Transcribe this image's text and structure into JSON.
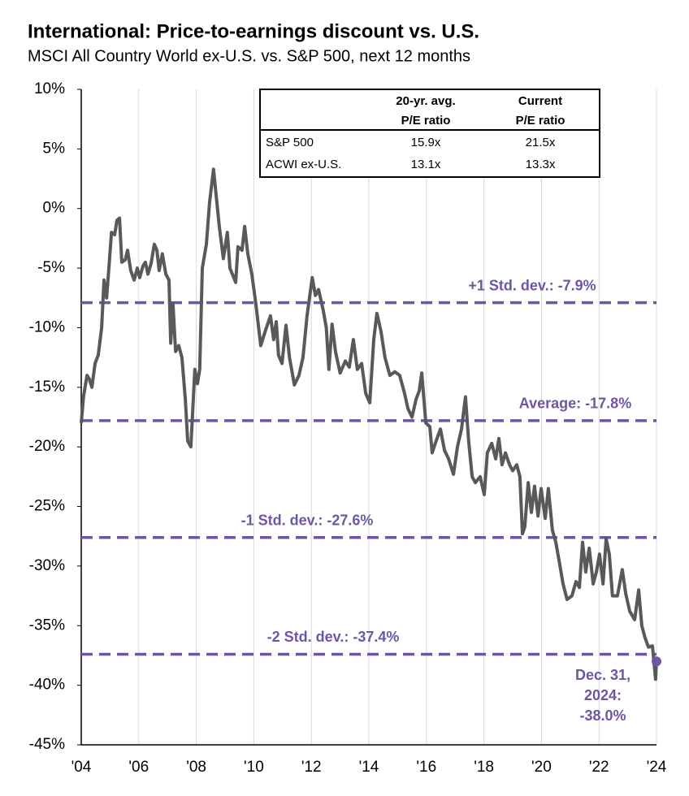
{
  "chart_data": {
    "type": "line",
    "title": "International: Price-to-earnings discount vs. U.S.",
    "subtitle": "MSCI All Country World ex-U.S. vs. S&P 500, next 12 months",
    "xlim": [
      2004,
      2024
    ],
    "xticks": [
      {
        "value": 2004,
        "label": "'04"
      },
      {
        "value": 2006,
        "label": "'06"
      },
      {
        "value": 2008,
        "label": "'08"
      },
      {
        "value": 2010,
        "label": "'10"
      },
      {
        "value": 2012,
        "label": "'12"
      },
      {
        "value": 2014,
        "label": "'14"
      },
      {
        "value": 2016,
        "label": "'16"
      },
      {
        "value": 2018,
        "label": "'18"
      },
      {
        "value": 2020,
        "label": "'20"
      },
      {
        "value": 2022,
        "label": "'22"
      },
      {
        "value": 2024,
        "label": "'24"
      }
    ],
    "ylim": [
      -45,
      10
    ],
    "yticks": [
      {
        "value": 10,
        "label": "10%"
      },
      {
        "value": 5,
        "label": "5%"
      },
      {
        "value": 0,
        "label": "0%"
      },
      {
        "value": -5,
        "label": "-5%"
      },
      {
        "value": -10,
        "label": "-10%"
      },
      {
        "value": -15,
        "label": "-15%"
      },
      {
        "value": -20,
        "label": "-20%"
      },
      {
        "value": -25,
        "label": "-25%"
      },
      {
        "value": -30,
        "label": "-30%"
      },
      {
        "value": -35,
        "label": "-35%"
      },
      {
        "value": -40,
        "label": "-40%"
      },
      {
        "value": -45,
        "label": "-45%"
      }
    ],
    "grid": "x",
    "x": [
      2004.0,
      2004.08,
      2004.2,
      2004.28,
      2004.37,
      2004.48,
      2004.59,
      2004.71,
      2004.79,
      2004.88,
      2004.96,
      2005.05,
      2005.16,
      2005.24,
      2005.33,
      2005.41,
      2005.53,
      2005.61,
      2005.72,
      2005.84,
      2005.95,
      2006.03,
      2006.15,
      2006.23,
      2006.32,
      2006.43,
      2006.54,
      2006.63,
      2006.71,
      2006.82,
      2006.94,
      2007.05,
      2007.11,
      2007.19,
      2007.28,
      2007.39,
      2007.5,
      2007.62,
      2007.7,
      2007.81,
      2007.95,
      2008.04,
      2008.12,
      2008.21,
      2008.35,
      2008.46,
      2008.6,
      2008.8,
      2008.94,
      2009.08,
      2009.17,
      2009.37,
      2009.45,
      2009.59,
      2009.68,
      2009.79,
      2009.93,
      2010.07,
      2010.24,
      2010.41,
      2010.58,
      2010.69,
      2010.78,
      2010.86,
      2010.98,
      2011.12,
      2011.24,
      2011.41,
      2011.57,
      2011.71,
      2011.85,
      2012.03,
      2012.14,
      2012.25,
      2012.41,
      2012.52,
      2012.61,
      2012.72,
      2012.84,
      2013.0,
      2013.18,
      2013.32,
      2013.46,
      2013.6,
      2013.75,
      2013.89,
      2014.03,
      2014.17,
      2014.28,
      2014.42,
      2014.56,
      2014.73,
      2014.9,
      2015.07,
      2015.24,
      2015.36,
      2015.5,
      2015.64,
      2015.75,
      2015.84,
      2015.98,
      2016.12,
      2016.2,
      2016.34,
      2016.49,
      2016.63,
      2016.77,
      2016.94,
      2017.08,
      2017.22,
      2017.36,
      2017.47,
      2017.59,
      2017.7,
      2017.87,
      2018.01,
      2018.12,
      2018.27,
      2018.41,
      2018.52,
      2018.63,
      2018.75,
      2018.89,
      2019.0,
      2019.14,
      2019.25,
      2019.34,
      2019.42,
      2019.54,
      2019.65,
      2019.76,
      2019.88,
      2019.99,
      2020.13,
      2020.24,
      2020.38,
      2020.5,
      2020.61,
      2020.75,
      2020.89,
      2021.06,
      2021.2,
      2021.32,
      2021.43,
      2021.54,
      2021.66,
      2021.8,
      2021.91,
      2022.02,
      2022.14,
      2022.25,
      2022.36,
      2022.47,
      2022.64,
      2022.81,
      2022.93,
      2023.07,
      2023.24,
      2023.38,
      2023.49,
      2023.6,
      2023.72,
      2023.86,
      2023.97,
      2024.0
    ],
    "series": [
      {
        "name": "ACWI ex-U.S. vs. S&P 500 P/E discount",
        "color": "#58595b",
        "values": [
          -18,
          -15.8,
          -14,
          -14.3,
          -15,
          -13,
          -12.3,
          -10,
          -6,
          -7.5,
          -5,
          -2,
          -2.2,
          -1,
          -0.8,
          -4.5,
          -4.3,
          -3.5,
          -5.2,
          -6,
          -5,
          -5.8,
          -4.8,
          -4.5,
          -5.5,
          -4.6,
          -3,
          -3.5,
          -5.2,
          -3.8,
          -5.5,
          -6,
          -11.3,
          -8,
          -12,
          -11.5,
          -12.5,
          -16,
          -19.5,
          -20,
          -13.5,
          -14.7,
          -13.5,
          -5,
          -3,
          0.5,
          3.3,
          -1.5,
          -4.2,
          -2,
          -5,
          -6.2,
          -3.2,
          -3.5,
          -1.5,
          -3.8,
          -5.5,
          -8,
          -11.5,
          -10.2,
          -9,
          -11,
          -9.5,
          -12.3,
          -13,
          -9.8,
          -12.5,
          -14.8,
          -14,
          -12.5,
          -9,
          -5.8,
          -7.3,
          -6.8,
          -8.5,
          -10,
          -13.5,
          -9.7,
          -12,
          -13.8,
          -12.8,
          -13.3,
          -11,
          -13.5,
          -13,
          -15.5,
          -16.3,
          -11,
          -8.8,
          -10.3,
          -12.5,
          -14,
          -13.7,
          -14,
          -15.5,
          -16.8,
          -17.5,
          -16,
          -15.3,
          -13.8,
          -18,
          -18.3,
          -20.5,
          -19.5,
          -18.5,
          -20.3,
          -21,
          -22.3,
          -20,
          -18.5,
          -15.8,
          -19.5,
          -22.5,
          -23,
          -22.5,
          -24,
          -20.5,
          -19.7,
          -21,
          -19.3,
          -21.5,
          -20.5,
          -21.5,
          -22,
          -21.5,
          -22.5,
          -27.3,
          -26.7,
          -23,
          -25.5,
          -23.3,
          -25.8,
          -23.5,
          -26,
          -23.5,
          -27,
          -28,
          -29.5,
          -31.5,
          -32.8,
          -32.5,
          -31.3,
          -31.8,
          -28,
          -30.5,
          -28.5,
          -31.5,
          -30.5,
          -29,
          -31.5,
          -27.7,
          -29,
          -32.5,
          -32.5,
          -30.3,
          -32.3,
          -33.8,
          -34.5,
          -32,
          -35,
          -36,
          -36.8,
          -36.7,
          -39.5,
          -38.0
        ]
      }
    ],
    "reference_lines": {
      "color": "#7055a5",
      "lines": [
        {
          "label": "+1 Std. dev.: -7.9%",
          "value": -7.9
        },
        {
          "label": "Average: -17.8%",
          "value": -17.8
        },
        {
          "label": "-1 Std. dev.: -27.6%",
          "value": -27.6
        },
        {
          "label": "-2 Std. dev.: -37.4%",
          "value": -37.4
        }
      ]
    },
    "annotation": [
      "Dec. 31,",
      "2024:",
      "-38.0%"
    ],
    "table": {
      "columns": [
        [
          "20-yr. avg.",
          "P/E ratio"
        ],
        [
          "Current",
          "P/E ratio"
        ]
      ],
      "rows": [
        {
          "label": "S&P 500",
          "values": [
            "15.9x",
            "21.5x"
          ]
        },
        {
          "label": "ACWI ex-U.S.",
          "values": [
            "13.1x",
            "13.3x"
          ]
        }
      ]
    }
  }
}
